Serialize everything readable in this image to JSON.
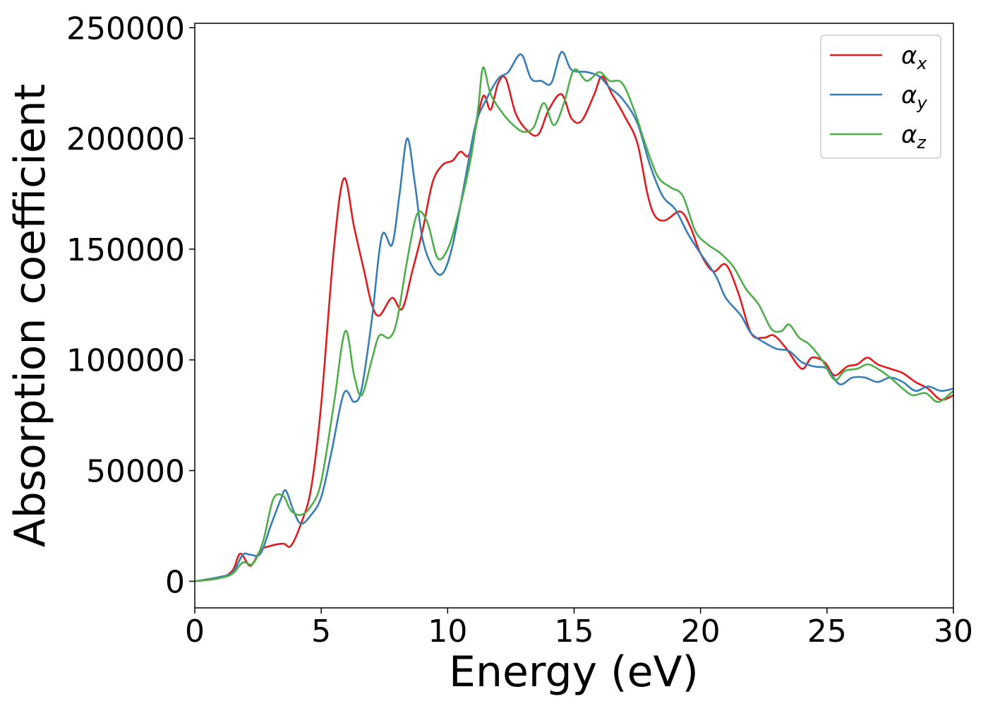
{
  "chart_data": {
    "type": "line",
    "title": "",
    "xlabel": "Energy (eV)",
    "ylabel": "Absorption coefficient",
    "xlim": [
      0,
      30
    ],
    "ylim": [
      -12000,
      252000
    ],
    "xticks": [
      0,
      5,
      10,
      15,
      20,
      25,
      30
    ],
    "xtick_labels": [
      "0",
      "5",
      "10",
      "15",
      "20",
      "25",
      "30"
    ],
    "yticks": [
      0,
      50000,
      100000,
      150000,
      200000,
      250000
    ],
    "ytick_labels": [
      "0",
      "50000",
      "100000",
      "150000",
      "200000",
      "250000"
    ],
    "grid": false,
    "legend_position": "top-right",
    "series": [
      {
        "name": "α",
        "subscript": "x",
        "color": "#e41a1c",
        "points": [
          [
            0,
            0
          ],
          [
            1,
            1500
          ],
          [
            1.5,
            5000
          ],
          [
            1.8,
            12500
          ],
          [
            2.2,
            7000
          ],
          [
            2.6,
            14000
          ],
          [
            3.0,
            16000
          ],
          [
            3.5,
            17000
          ],
          [
            3.8,
            16000
          ],
          [
            4.2,
            26000
          ],
          [
            4.6,
            42000
          ],
          [
            5.0,
            80000
          ],
          [
            5.5,
            150000
          ],
          [
            5.9,
            182000
          ],
          [
            6.3,
            160000
          ],
          [
            6.7,
            140000
          ],
          [
            7.0,
            125000
          ],
          [
            7.3,
            120000
          ],
          [
            7.8,
            128000
          ],
          [
            8.2,
            123000
          ],
          [
            8.6,
            140000
          ],
          [
            9.0,
            158000
          ],
          [
            9.4,
            180000
          ],
          [
            9.8,
            188000
          ],
          [
            10.2,
            190000
          ],
          [
            10.5,
            194000
          ],
          [
            10.8,
            192000
          ],
          [
            11.0,
            199000
          ],
          [
            11.4,
            219000
          ],
          [
            11.7,
            213000
          ],
          [
            12.0,
            225000
          ],
          [
            12.3,
            227000
          ],
          [
            12.7,
            211000
          ],
          [
            13.2,
            203000
          ],
          [
            13.6,
            202000
          ],
          [
            14.0,
            213000
          ],
          [
            14.5,
            220000
          ],
          [
            14.9,
            209000
          ],
          [
            15.3,
            208000
          ],
          [
            15.8,
            220000
          ],
          [
            16.1,
            228000
          ],
          [
            16.5,
            220000
          ],
          [
            17.0,
            210000
          ],
          [
            17.5,
            198000
          ],
          [
            17.9,
            175000
          ],
          [
            18.2,
            165000
          ],
          [
            18.6,
            163000
          ],
          [
            19.2,
            167000
          ],
          [
            19.6,
            160000
          ],
          [
            20.0,
            148000
          ],
          [
            20.5,
            140000
          ],
          [
            21.0,
            143000
          ],
          [
            21.5,
            130000
          ],
          [
            22.0,
            112000
          ],
          [
            22.5,
            110000
          ],
          [
            22.9,
            111000
          ],
          [
            23.4,
            105000
          ],
          [
            24.0,
            96000
          ],
          [
            24.4,
            101000
          ],
          [
            24.9,
            99000
          ],
          [
            25.3,
            93000
          ],
          [
            25.8,
            97000
          ],
          [
            26.2,
            98000
          ],
          [
            26.6,
            101000
          ],
          [
            27.0,
            98000
          ],
          [
            27.5,
            96000
          ],
          [
            28.0,
            94000
          ],
          [
            28.5,
            90000
          ],
          [
            29.0,
            87000
          ],
          [
            29.5,
            82000
          ],
          [
            30,
            84000
          ]
        ]
      },
      {
        "name": "α",
        "subscript": "y",
        "color": "#377eb8",
        "points": [
          [
            0,
            0
          ],
          [
            1,
            2000
          ],
          [
            1.5,
            4000
          ],
          [
            1.9,
            12000
          ],
          [
            2.2,
            12000
          ],
          [
            2.6,
            12500
          ],
          [
            3.0,
            25000
          ],
          [
            3.4,
            37000
          ],
          [
            3.6,
            41000
          ],
          [
            3.9,
            32000
          ],
          [
            4.2,
            26000
          ],
          [
            4.6,
            30000
          ],
          [
            5.0,
            38000
          ],
          [
            5.4,
            58000
          ],
          [
            5.9,
            85000
          ],
          [
            6.3,
            81000
          ],
          [
            6.6,
            87000
          ],
          [
            7.0,
            118000
          ],
          [
            7.4,
            156000
          ],
          [
            7.8,
            152000
          ],
          [
            8.1,
            175000
          ],
          [
            8.4,
            200000
          ],
          [
            8.7,
            180000
          ],
          [
            9.0,
            155000
          ],
          [
            9.4,
            142000
          ],
          [
            9.8,
            139000
          ],
          [
            10.2,
            152000
          ],
          [
            10.7,
            182000
          ],
          [
            11.1,
            206000
          ],
          [
            11.5,
            217000
          ],
          [
            12.0,
            227000
          ],
          [
            12.4,
            230000
          ],
          [
            12.9,
            238000
          ],
          [
            13.3,
            227000
          ],
          [
            13.7,
            226000
          ],
          [
            14.1,
            225000
          ],
          [
            14.5,
            239000
          ],
          [
            14.9,
            231000
          ],
          [
            15.5,
            230000
          ],
          [
            16.0,
            228000
          ],
          [
            16.4,
            223000
          ],
          [
            16.9,
            218000
          ],
          [
            17.5,
            207000
          ],
          [
            18.0,
            188000
          ],
          [
            18.5,
            174000
          ],
          [
            19.0,
            168000
          ],
          [
            19.5,
            157000
          ],
          [
            20.0,
            148000
          ],
          [
            20.6,
            138000
          ],
          [
            21.0,
            128000
          ],
          [
            21.6,
            120000
          ],
          [
            22.0,
            112000
          ],
          [
            22.5,
            108000
          ],
          [
            23.0,
            105000
          ],
          [
            23.5,
            104000
          ],
          [
            24.0,
            99000
          ],
          [
            24.5,
            97000
          ],
          [
            25.0,
            96000
          ],
          [
            25.5,
            89000
          ],
          [
            26.0,
            92000
          ],
          [
            26.5,
            92000
          ],
          [
            27.0,
            90000
          ],
          [
            27.5,
            92000
          ],
          [
            28.0,
            90000
          ],
          [
            28.5,
            86000
          ],
          [
            29.0,
            88000
          ],
          [
            29.5,
            86000
          ],
          [
            30,
            87000
          ]
        ]
      },
      {
        "name": "α",
        "subscript": "z",
        "color": "#4daf4a",
        "points": [
          [
            0,
            0
          ],
          [
            1,
            1500
          ],
          [
            1.5,
            3500
          ],
          [
            1.9,
            8500
          ],
          [
            2.3,
            8000
          ],
          [
            2.7,
            18000
          ],
          [
            3.1,
            37000
          ],
          [
            3.5,
            38500
          ],
          [
            3.8,
            32000
          ],
          [
            4.2,
            30000
          ],
          [
            4.6,
            34000
          ],
          [
            5.0,
            45000
          ],
          [
            5.5,
            80000
          ],
          [
            5.95,
            113000
          ],
          [
            6.3,
            93000
          ],
          [
            6.6,
            84000
          ],
          [
            7.0,
            100000
          ],
          [
            7.3,
            111000
          ],
          [
            7.7,
            110000
          ],
          [
            8.0,
            118000
          ],
          [
            8.4,
            145000
          ],
          [
            8.8,
            166000
          ],
          [
            9.2,
            162000
          ],
          [
            9.6,
            146000
          ],
          [
            10.0,
            150000
          ],
          [
            10.4,
            165000
          ],
          [
            10.9,
            190000
          ],
          [
            11.2,
            213000
          ],
          [
            11.4,
            232000
          ],
          [
            11.7,
            220000
          ],
          [
            12.2,
            211000
          ],
          [
            12.6,
            206000
          ],
          [
            13.0,
            203000
          ],
          [
            13.4,
            205000
          ],
          [
            13.8,
            216000
          ],
          [
            14.2,
            206000
          ],
          [
            14.6,
            216000
          ],
          [
            15.0,
            231000
          ],
          [
            15.5,
            226000
          ],
          [
            16.0,
            230000
          ],
          [
            16.4,
            226000
          ],
          [
            16.9,
            225000
          ],
          [
            17.4,
            212000
          ],
          [
            17.8,
            198000
          ],
          [
            18.3,
            183000
          ],
          [
            18.8,
            178000
          ],
          [
            19.3,
            174000
          ],
          [
            19.8,
            158000
          ],
          [
            20.3,
            152000
          ],
          [
            20.8,
            148000
          ],
          [
            21.3,
            142000
          ],
          [
            21.8,
            132000
          ],
          [
            22.3,
            125000
          ],
          [
            22.8,
            114000
          ],
          [
            23.2,
            113000
          ],
          [
            23.5,
            116000
          ],
          [
            23.9,
            110000
          ],
          [
            24.3,
            107000
          ],
          [
            24.8,
            100000
          ],
          [
            25.3,
            91000
          ],
          [
            25.7,
            95000
          ],
          [
            26.2,
            96000
          ],
          [
            26.6,
            98000
          ],
          [
            27.0,
            96000
          ],
          [
            27.5,
            92000
          ],
          [
            28.0,
            87000
          ],
          [
            28.4,
            84000
          ],
          [
            28.9,
            85000
          ],
          [
            29.4,
            81000
          ],
          [
            30,
            86000
          ]
        ]
      }
    ]
  }
}
